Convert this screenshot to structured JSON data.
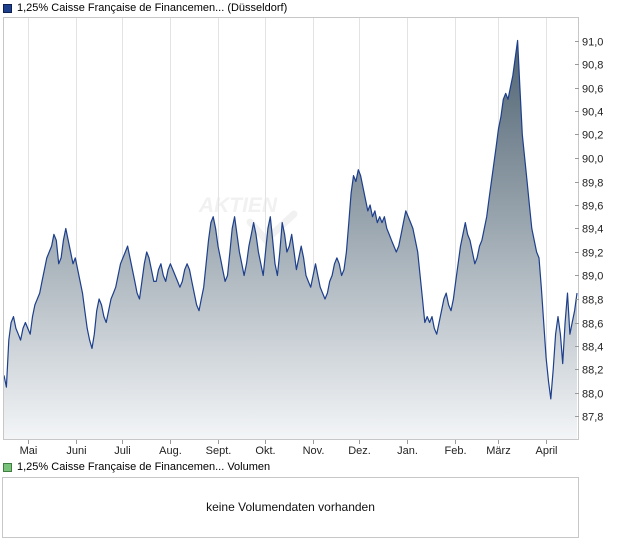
{
  "price_legend": {
    "label": "1,25% Caisse Française de Financemen... (Düsseldorf)",
    "color": "#1d3f8c"
  },
  "volume_legend": {
    "label": "1,25% Caisse Française de Financemen... Volumen",
    "color": "#79c27a"
  },
  "volume_panel": {
    "message": "keine Volumendaten vorhanden"
  },
  "chart_data": {
    "type": "area",
    "title": "",
    "xlabel": "",
    "ylabel": "",
    "y_axis_side": "right",
    "ylim": [
      87.6,
      91.2
    ],
    "y_ticks": [
      "91,0",
      "90,8",
      "90,6",
      "90,4",
      "90,2",
      "90,0",
      "89,8",
      "89,6",
      "89,4",
      "89,2",
      "89,0",
      "88,8",
      "88,6",
      "88,4",
      "88,2",
      "88,0",
      "87,8"
    ],
    "y_tick_values": [
      91.0,
      90.8,
      90.6,
      90.4,
      90.2,
      90.0,
      89.8,
      89.6,
      89.4,
      89.2,
      89.0,
      88.8,
      88.6,
      88.4,
      88.2,
      88.0,
      87.8
    ],
    "x_ticks": [
      "Mai",
      "Juni",
      "Juli",
      "Aug.",
      "Sept.",
      "Okt.",
      "Nov.",
      "Dez.",
      "Jan.",
      "Feb.",
      "März",
      "April"
    ],
    "grid": "vertical",
    "line_color": "#1d3f8c",
    "fill_top_color": "#4f6372",
    "fill_bottom_color": "#f3f5f7",
    "series": [
      {
        "x_start": "2024-04-15",
        "x_end": "2025-04-22",
        "values": [
          88.15,
          88.05,
          88.45,
          88.6,
          88.65,
          88.55,
          88.5,
          88.45,
          88.55,
          88.6,
          88.55,
          88.5,
          88.65,
          88.75,
          88.8,
          88.85,
          88.95,
          89.05,
          89.15,
          89.2,
          89.25,
          89.35,
          89.3,
          89.1,
          89.15,
          89.3,
          89.4,
          89.3,
          89.2,
          89.1,
          89.15,
          89.05,
          88.95,
          88.85,
          88.7,
          88.55,
          88.45,
          88.38,
          88.5,
          88.7,
          88.8,
          88.75,
          88.65,
          88.6,
          88.7,
          88.8,
          88.85,
          88.9,
          89.0,
          89.1,
          89.15,
          89.2,
          89.25,
          89.15,
          89.05,
          88.95,
          88.85,
          88.8,
          88.95,
          89.1,
          89.2,
          89.15,
          89.05,
          88.95,
          88.95,
          89.05,
          89.1,
          89.0,
          88.95,
          89.05,
          89.1,
          89.05,
          89.0,
          88.95,
          88.9,
          88.95,
          89.05,
          89.1,
          89.05,
          88.95,
          88.85,
          88.75,
          88.7,
          88.8,
          88.9,
          89.1,
          89.3,
          89.45,
          89.5,
          89.4,
          89.25,
          89.15,
          89.05,
          88.95,
          89.0,
          89.2,
          89.4,
          89.5,
          89.35,
          89.2,
          89.1,
          89.0,
          89.1,
          89.25,
          89.35,
          89.45,
          89.35,
          89.2,
          89.1,
          89.0,
          89.2,
          89.4,
          89.5,
          89.3,
          89.1,
          89.0,
          89.2,
          89.45,
          89.35,
          89.2,
          89.25,
          89.35,
          89.2,
          89.05,
          89.15,
          89.25,
          89.15,
          89.0,
          88.95,
          88.9,
          89.0,
          89.1,
          89.0,
          88.9,
          88.85,
          88.8,
          88.85,
          88.95,
          89.0,
          89.1,
          89.15,
          89.1,
          89.0,
          89.05,
          89.2,
          89.45,
          89.7,
          89.85,
          89.8,
          89.9,
          89.85,
          89.75,
          89.65,
          89.55,
          89.6,
          89.5,
          89.55,
          89.45,
          89.5,
          89.45,
          89.5,
          89.4,
          89.35,
          89.3,
          89.25,
          89.2,
          89.25,
          89.35,
          89.45,
          89.55,
          89.5,
          89.45,
          89.4,
          89.3,
          89.2,
          89.0,
          88.8,
          88.6,
          88.65,
          88.6,
          88.65,
          88.55,
          88.5,
          88.6,
          88.7,
          88.8,
          88.85,
          88.75,
          88.7,
          88.8,
          88.95,
          89.1,
          89.25,
          89.35,
          89.45,
          89.35,
          89.3,
          89.2,
          89.1,
          89.15,
          89.25,
          89.3,
          89.4,
          89.5,
          89.65,
          89.8,
          89.95,
          90.1,
          90.25,
          90.35,
          90.5,
          90.55,
          90.5,
          90.6,
          90.7,
          90.85,
          91.0,
          90.6,
          90.2,
          90.0,
          89.8,
          89.6,
          89.4,
          89.3,
          89.2,
          89.15,
          88.9,
          88.6,
          88.3,
          88.1,
          87.95,
          88.2,
          88.5,
          88.65,
          88.5,
          88.25,
          88.6,
          88.85,
          88.5,
          88.6,
          88.7,
          88.85
        ]
      }
    ]
  }
}
